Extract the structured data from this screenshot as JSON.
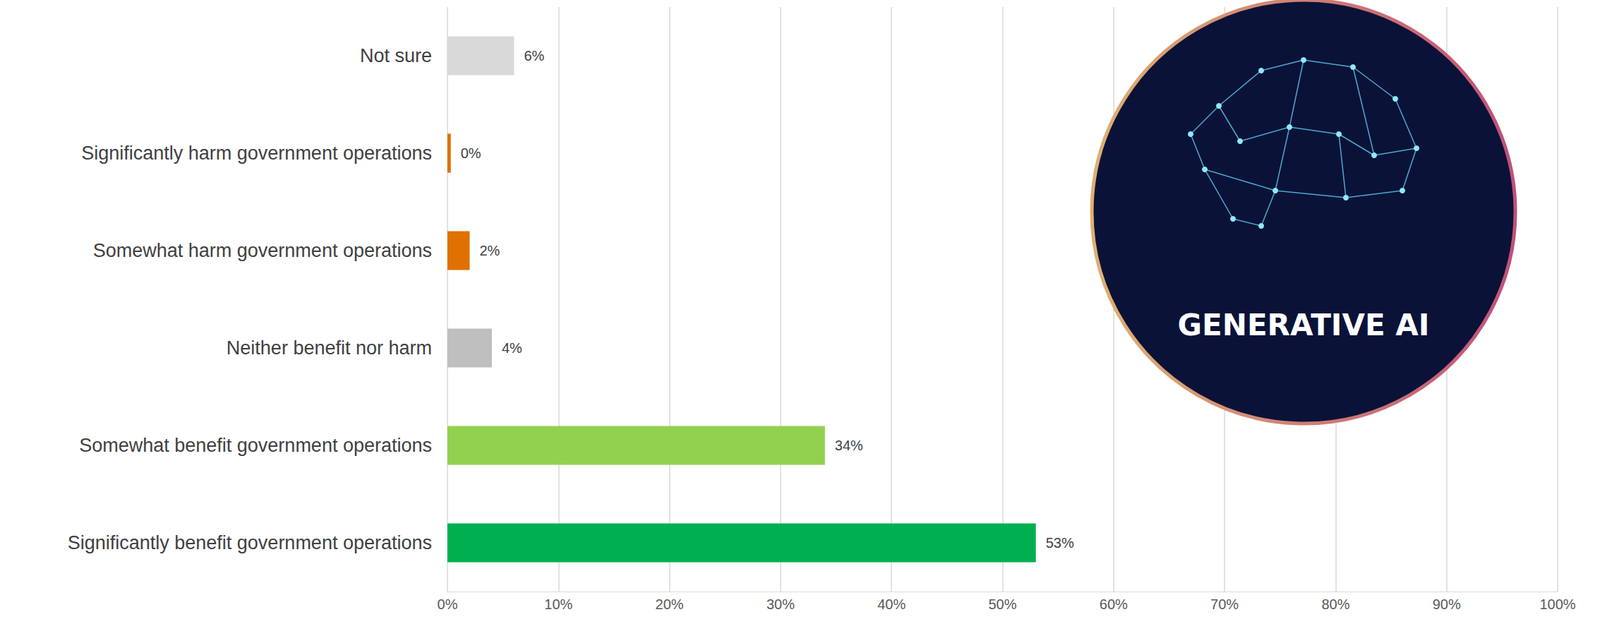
{
  "chart_data": {
    "type": "bar",
    "orientation": "horizontal",
    "categories": [
      "Not sure",
      "Significantly harm government operations",
      "Somewhat harm government operations",
      "Neither benefit nor harm",
      "Somewhat benefit government operations",
      "Significantly benefit government operations"
    ],
    "values": [
      6,
      0.3,
      2,
      4,
      34,
      53
    ],
    "value_labels": [
      "6%",
      "0%",
      "2%",
      "4%",
      "34%",
      "53%"
    ],
    "colors": [
      "#d9d9d9",
      "#e07000",
      "#e07000",
      "#bfbfbf",
      "#92d050",
      "#00b050"
    ],
    "xlim": [
      0,
      100
    ],
    "xticks": [
      {
        "value": 0,
        "label": "0%"
      },
      {
        "value": 10,
        "label": "10%"
      },
      {
        "value": 20,
        "label": "20%"
      },
      {
        "value": 30,
        "label": "30%"
      },
      {
        "value": 40,
        "label": "40%"
      },
      {
        "value": 50,
        "label": "50%"
      },
      {
        "value": 60,
        "label": "60%"
      },
      {
        "value": 70,
        "label": "70%"
      },
      {
        "value": 80,
        "label": "80%"
      },
      {
        "value": 90,
        "label": "90%"
      },
      {
        "value": 100,
        "label": "100%"
      }
    ],
    "grid": true,
    "data_labels": true,
    "annotations": [
      "GENERATIVE AI"
    ]
  }
}
